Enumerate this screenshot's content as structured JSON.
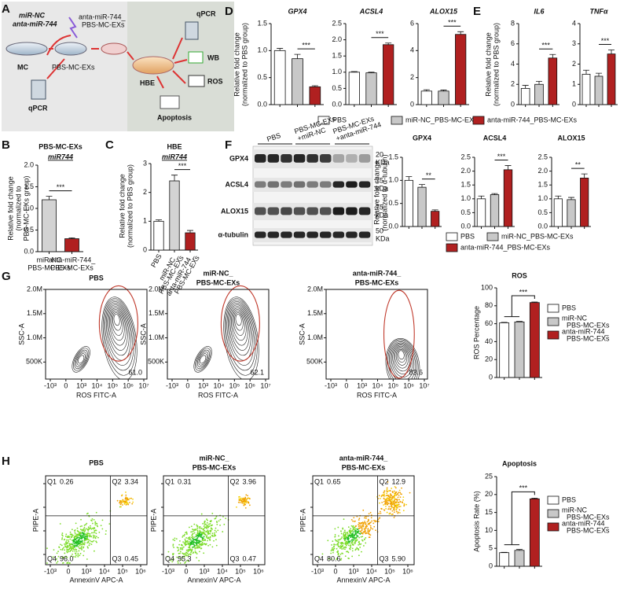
{
  "panel_labels": [
    "A",
    "B",
    "C",
    "D",
    "E",
    "F",
    "G",
    "H"
  ],
  "schematic": {
    "mir_nc": "miR-NC",
    "anta": "anta-miR-744",
    "exs_label": [
      "anta-miR-744_",
      "PBS-MC-EXs"
    ],
    "mc": "MC",
    "pbs_exs": "PBS-MC-EXs",
    "qpcr_left": "qPCR",
    "hbe": "HBE",
    "qpcr_right": "qPCR",
    "wb": "WB",
    "ros": "ROS",
    "apoptosis": "Apoptosis"
  },
  "legend_colors": [
    "#ffffff",
    "#c8c8c8",
    "#b02020"
  ],
  "chart_data": [
    {
      "type": "bar",
      "title": [
        "PBS-MC-EXs",
        "miR744"
      ],
      "ylabel": [
        "Relative fold change",
        "(normalized to",
        "PBS-MC-EXs group)"
      ],
      "categories": [
        [
          "miR-NC",
          "PBS-MC-EXs"
        ],
        [
          "anta-miR-744_",
          "PBS-MC-EXs"
        ]
      ],
      "values": [
        1.2,
        0.3
      ],
      "errors": [
        0.08,
        0.02
      ],
      "colors": [
        "#d3d3d3",
        "#b02020"
      ],
      "ylim": [
        0,
        2
      ],
      "yticks": [
        {
          "value": 0,
          "label": "0.0"
        },
        {
          "value": 0.5,
          "label": "0.5"
        },
        {
          "value": 1,
          "label": "1.0"
        },
        {
          "value": 1.5,
          "label": "1.5"
        },
        {
          "value": 2,
          "label": "2.0"
        }
      ],
      "significance": "***"
    },
    {
      "type": "bar",
      "title": [
        "HBE",
        "miR744"
      ],
      "ylabel": [
        "Relative fold change",
        "(normalized to PBS group)"
      ],
      "categories": [
        [
          "PBS"
        ],
        [
          "miR-NC_",
          "PBS-MC-EXs"
        ],
        [
          "anta-miR-744_",
          "PBS-MC-EXs"
        ]
      ],
      "values": [
        1.0,
        2.4,
        0.6
      ],
      "errors": [
        0.05,
        0.2,
        0.08
      ],
      "colors": [
        "#ffffff",
        "#d3d3d3",
        "#b02020"
      ],
      "ylim": [
        0,
        3
      ],
      "yticks": [
        0,
        1,
        2,
        3
      ],
      "significance": "***"
    },
    {
      "type": "bar",
      "title": [
        "GPX4"
      ],
      "ylabel": [
        "Relative fold change",
        "(normalized to PBS group)"
      ],
      "categories": [
        null,
        null,
        null
      ],
      "values": [
        1.0,
        0.85,
        0.33
      ],
      "errors": [
        0.04,
        0.08,
        0.02
      ],
      "colors": [
        "#ffffff",
        "#c8c8c8",
        "#b02020"
      ],
      "ylim": [
        0,
        1.5
      ],
      "yticks": [
        {
          "value": 0,
          "label": "0.0"
        },
        {
          "value": 0.5,
          "label": "0.5"
        },
        {
          "value": 1,
          "label": "1.0"
        },
        {
          "value": 1.5,
          "label": "1.5"
        }
      ],
      "significance": "***"
    },
    {
      "type": "bar",
      "title": [
        "ACSL4"
      ],
      "categories": [
        null,
        null,
        null
      ],
      "values": [
        1.0,
        0.98,
        1.85
      ],
      "errors": [
        0.02,
        0.02,
        0.05
      ],
      "colors": [
        "#ffffff",
        "#c8c8c8",
        "#b02020"
      ],
      "ylim": [
        0,
        2.5
      ],
      "yticks": [
        {
          "value": 0,
          "label": "0.0"
        },
        {
          "value": 0.5,
          "label": "0.5"
        },
        {
          "value": 1,
          "label": "1.0"
        },
        {
          "value": 1.5,
          "label": "1.5"
        },
        {
          "value": 2,
          "label": "2.0"
        },
        {
          "value": 2.5,
          "label": "2.5"
        }
      ],
      "significance": "***"
    },
    {
      "type": "bar",
      "title": [
        "ALOX15"
      ],
      "categories": [
        null,
        null,
        null
      ],
      "values": [
        1.0,
        1.0,
        5.2
      ],
      "errors": [
        0.1,
        0.08,
        0.2
      ],
      "colors": [
        "#ffffff",
        "#c8c8c8",
        "#b02020"
      ],
      "ylim": [
        0,
        6
      ],
      "yticks": [
        0,
        2,
        4,
        6
      ],
      "significance": "***"
    },
    {
      "type": "bar",
      "title": [
        "IL6"
      ],
      "ylabel": [
        "Relative fold change",
        "(normalized to PBS group)"
      ],
      "categories": [
        null,
        null,
        null
      ],
      "values": [
        1.6,
        2.0,
        4.6
      ],
      "errors": [
        0.3,
        0.3,
        0.35
      ],
      "colors": [
        "#ffffff",
        "#c8c8c8",
        "#b02020"
      ],
      "ylim": [
        0,
        8
      ],
      "yticks": [
        0,
        2,
        4,
        6,
        8
      ],
      "significance": "***"
    },
    {
      "type": "bar",
      "title": [
        "TNFα"
      ],
      "categories": [
        null,
        null,
        null
      ],
      "values": [
        1.5,
        1.4,
        2.5
      ],
      "errors": [
        0.2,
        0.15,
        0.2
      ],
      "colors": [
        "#ffffff",
        "#c8c8c8",
        "#b02020"
      ],
      "ylim": [
        0,
        4
      ],
      "yticks": [
        0,
        1,
        2,
        3,
        4
      ],
      "significance": "***"
    },
    {
      "type": "bar",
      "title": [
        "GPX4"
      ],
      "ylabel": [
        "Relative fold change",
        "(normalized to α-tubulin)"
      ],
      "categories": [
        null,
        null,
        null
      ],
      "values": [
        1.0,
        0.85,
        0.33
      ],
      "errors": [
        0.08,
        0.06,
        0.03
      ],
      "colors": [
        "#ffffff",
        "#c8c8c8",
        "#b02020"
      ],
      "ylim": [
        0,
        1.5
      ],
      "yticks": [
        {
          "value": 0,
          "label": "0.0"
        },
        {
          "value": 0.5,
          "label": "0.5"
        },
        {
          "value": 1,
          "label": "1.0"
        },
        {
          "value": 1.5,
          "label": "1.5"
        }
      ],
      "significance": "**"
    },
    {
      "type": "bar",
      "title": [
        "ACSL4"
      ],
      "categories": [
        null,
        null,
        null
      ],
      "values": [
        1.0,
        1.15,
        2.05
      ],
      "errors": [
        0.1,
        0.04,
        0.15
      ],
      "colors": [
        "#ffffff",
        "#c8c8c8",
        "#b02020"
      ],
      "ylim": [
        0,
        2.5
      ],
      "yticks": [
        {
          "value": 0,
          "label": "0.0"
        },
        {
          "value": 0.5,
          "label": "0.5"
        },
        {
          "value": 1,
          "label": "1.0"
        },
        {
          "value": 1.5,
          "label": "1.5"
        },
        {
          "value": 2,
          "label": "2.0"
        },
        {
          "value": 2.5,
          "label": "2.5"
        }
      ],
      "significance": "***"
    },
    {
      "type": "bar",
      "title": [
        "ALOX15"
      ],
      "categories": [
        null,
        null,
        null
      ],
      "values": [
        1.0,
        0.97,
        1.75
      ],
      "errors": [
        0.1,
        0.08,
        0.15
      ],
      "colors": [
        "#ffffff",
        "#c8c8c8",
        "#b02020"
      ],
      "ylim": [
        0,
        2.5
      ],
      "yticks": [
        {
          "value": 0,
          "label": "0.0"
        },
        {
          "value": 0.5,
          "label": "0.5"
        },
        {
          "value": 1,
          "label": "1.0"
        },
        {
          "value": 1.5,
          "label": "1.5"
        },
        {
          "value": 2,
          "label": "2.0"
        },
        {
          "value": 2.5,
          "label": "2.5"
        }
      ],
      "significance": "**"
    },
    {
      "type": "bar",
      "title": [
        "ROS"
      ],
      "ylabel": [
        "ROS Percentage"
      ],
      "categories": [
        null,
        null,
        null
      ],
      "values": [
        61,
        62,
        83.6
      ],
      "errors": [
        0.5,
        0.6,
        0.6
      ],
      "colors": [
        "#ffffff",
        "#c8c8c8",
        "#b02020"
      ],
      "ylim": [
        0,
        100
      ],
      "yticks": [
        0,
        20,
        40,
        60,
        80,
        100
      ],
      "significance": "***"
    },
    {
      "type": "bar",
      "title": [
        "Apoptosis"
      ],
      "ylabel": [
        "Apoptosis Rate (%)"
      ],
      "categories": [
        null,
        null,
        null
      ],
      "values": [
        3.79,
        4.43,
        18.8
      ],
      "errors": [
        0.1,
        0.25,
        0.2
      ],
      "colors": [
        "#ffffff",
        "#c8c8c8",
        "#b02020"
      ],
      "ylim": [
        0,
        25
      ],
      "yticks": [
        0,
        5,
        10,
        15,
        20,
        25
      ],
      "significance": "***"
    }
  ],
  "legend_de": [
    "PBS",
    "miR-NC_PBS-MC-EXs",
    "anta-miR-744_PBS-MC-EXs"
  ],
  "legend_f": [
    "PBS",
    "miR-NC_PBS-MC-EXs",
    "anta-miR-744_PBS-MC-EXs"
  ],
  "legend_g": [
    [
      "PBS"
    ],
    [
      "miR-NC",
      "PBS-MC-EXs"
    ],
    [
      "anta-miR-744_",
      "PBS-MC-EXs"
    ]
  ],
  "legend_h": [
    [
      "PBS"
    ],
    [
      "miR-NC",
      "PBS-MC-EXs"
    ],
    [
      "anta-miR-744_",
      "PBS-MC-EXs"
    ]
  ],
  "blot": {
    "lanes": [
      [
        "PBS"
      ],
      [
        "PBS-MC-EXs",
        "+miR-NC"
      ],
      [
        "PBS-MC-EXs",
        "+anta-miR-744"
      ]
    ],
    "proteins": [
      "GPX4",
      "ACSL4",
      "ALOX15",
      "α-tubulin"
    ],
    "markers": [
      [
        "20",
        "KDa"
      ],
      [
        "75",
        "kDa"
      ],
      [
        "75",
        "kDa"
      ],
      [
        "50",
        "KDa"
      ]
    ]
  },
  "flow_ros": {
    "ylabel": "SSC-A",
    "xlabel": "ROS FITC-A",
    "yticks": [
      "2.0M",
      "1.5M",
      "1.0M",
      "500K"
    ],
    "xticks": [
      "-10³",
      "0",
      "10³",
      "10⁴",
      "10⁵",
      "10⁶",
      "10⁷"
    ],
    "plots": [
      {
        "title": [
          "PBS"
        ],
        "gate": "61.0"
      },
      {
        "title": [
          "miR-NC_",
          "PBS-MC-EXs"
        ],
        "gate": "62.1"
      },
      {
        "title": [
          "anta-miR-744_",
          "PBS-MC-EXs"
        ],
        "gate": "83.6"
      }
    ]
  },
  "flow_apoptosis": {
    "ylabel": "PIPE-A",
    "xlabel": "AnnexinV APC-A",
    "xticks": [
      "-10³",
      "0",
      "10³",
      "10⁴",
      "10⁵",
      "10⁶"
    ],
    "plots": [
      {
        "title": [
          "PBS"
        ],
        "quadrants": [
          {
            "name": "Q1",
            "value": "0.26"
          },
          {
            "name": "Q2",
            "value": "3.34"
          },
          {
            "name": "Q3",
            "value": "0.45"
          },
          {
            "name": "Q4",
            "value": "96.0"
          }
        ]
      },
      {
        "title": [
          "miR-NC_",
          "PBS-MC-EXs"
        ],
        "quadrants": [
          {
            "name": "Q1",
            "value": "0.31"
          },
          {
            "name": "Q2",
            "value": "3.96"
          },
          {
            "name": "Q3",
            "value": "0.47"
          },
          {
            "name": "Q4",
            "value": "95.3"
          }
        ]
      },
      {
        "title": [
          "anta-miR-744_",
          "PBS-MC-EXs"
        ],
        "quadrants": [
          {
            "name": "Q1",
            "value": "0.65"
          },
          {
            "name": "Q2",
            "value": "12.9"
          },
          {
            "name": "Q3",
            "value": "5.90"
          },
          {
            "name": "Q4",
            "value": "80.6"
          }
        ]
      }
    ]
  }
}
